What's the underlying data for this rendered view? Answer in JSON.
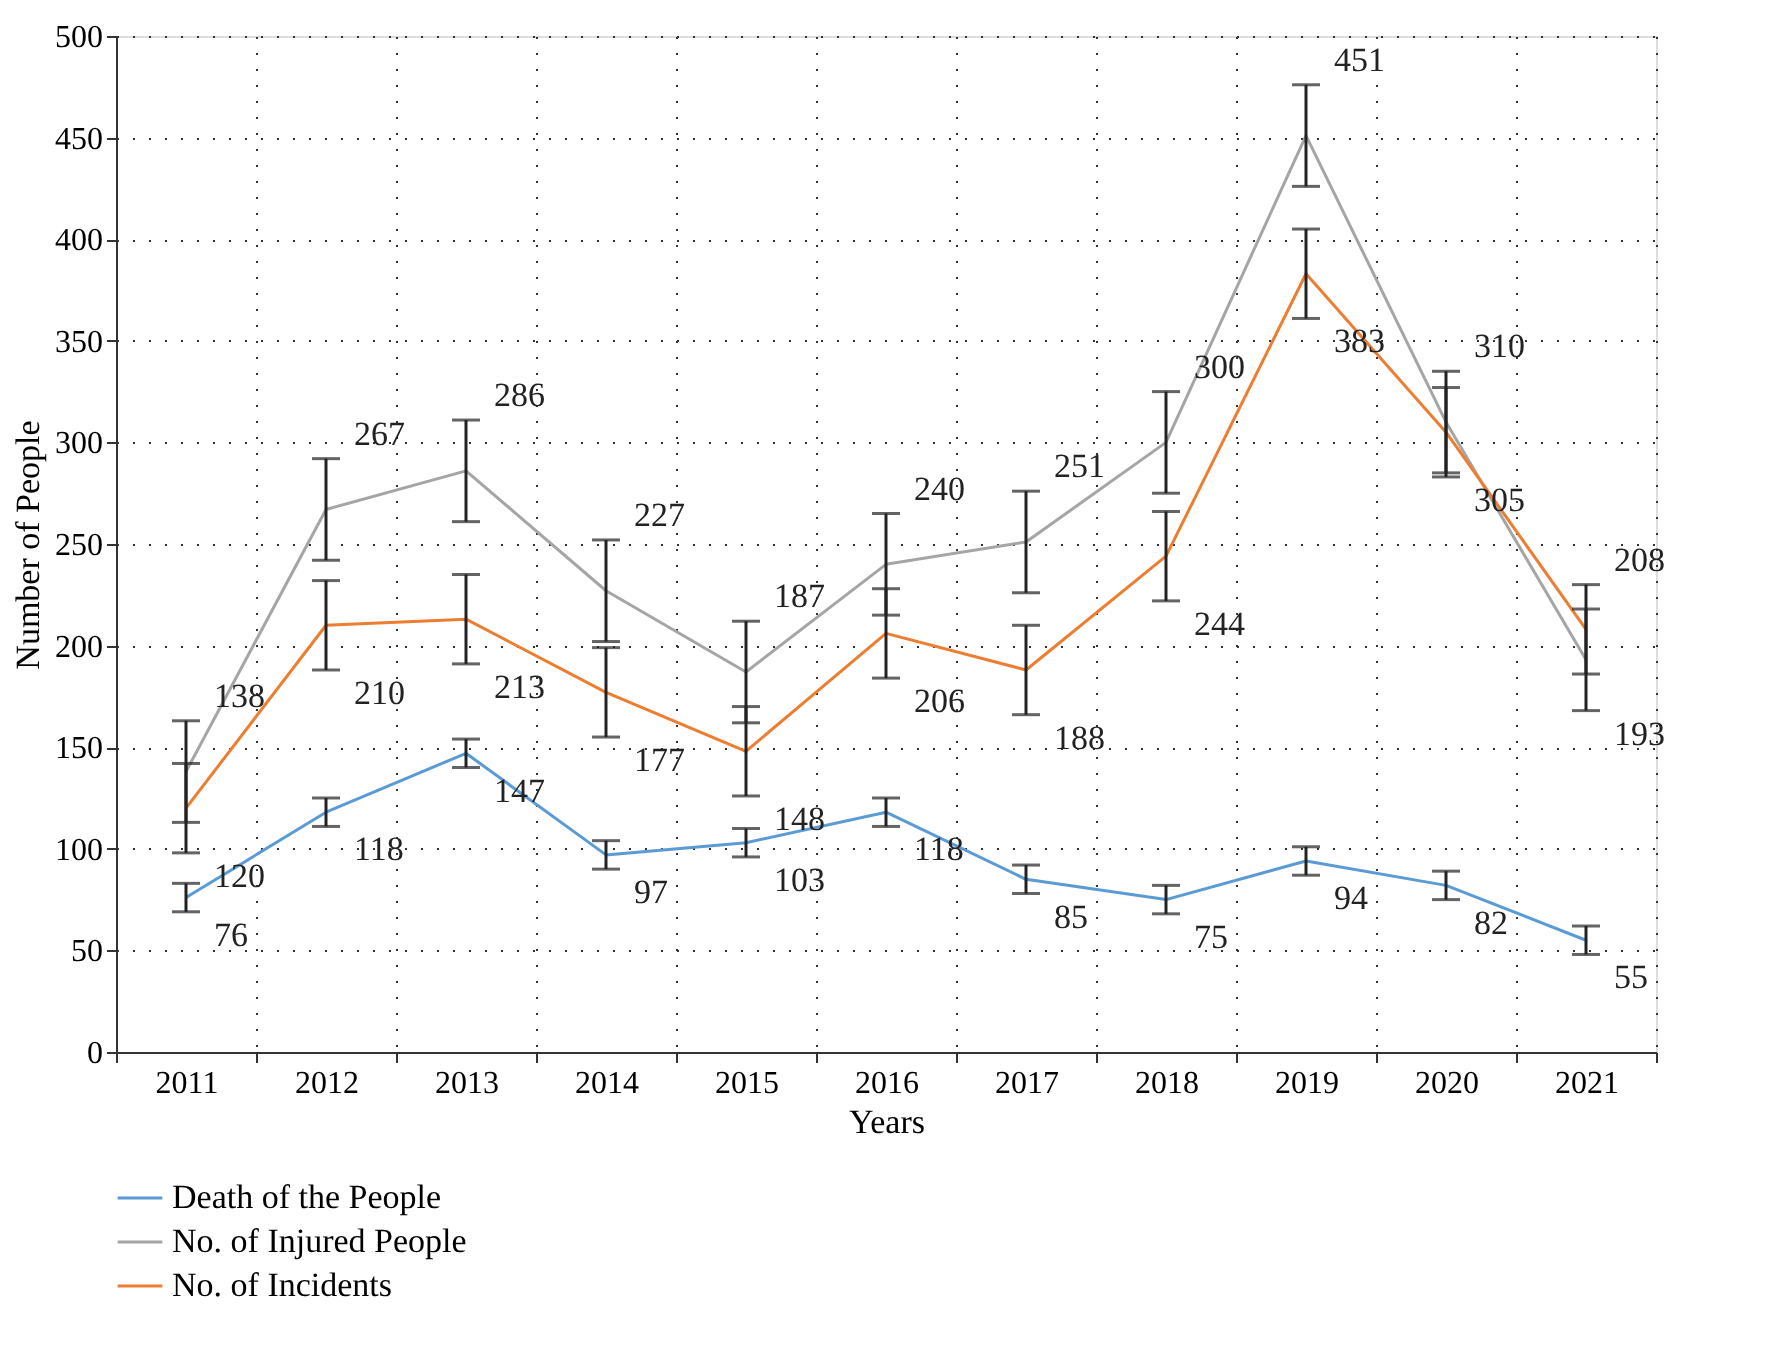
{
  "chart_data": {
    "type": "line",
    "xlabel": "Years",
    "ylabel": "Number of People",
    "categories": [
      "2011",
      "2012",
      "2013",
      "2014",
      "2015",
      "2016",
      "2017",
      "2018",
      "2019",
      "2020",
      "2021"
    ],
    "series": [
      {
        "name": "Death of the People",
        "color": "#5b9bd5",
        "values": [
          76,
          118,
          147,
          97,
          103,
          118,
          85,
          75,
          94,
          82,
          55
        ],
        "errors": [
          7,
          7,
          7,
          7,
          7,
          7,
          7,
          7,
          7,
          7,
          7
        ]
      },
      {
        "name": "No. of Injured People",
        "color": "#a5a5a5",
        "values": [
          138,
          267,
          286,
          227,
          187,
          240,
          251,
          300,
          451,
          310,
          193
        ],
        "errors": [
          25,
          25,
          25,
          25,
          25,
          25,
          25,
          25,
          25,
          25,
          25
        ]
      },
      {
        "name": "No. of Incidents",
        "color": "#ed7d31",
        "values": [
          120,
          210,
          213,
          177,
          148,
          206,
          188,
          244,
          383,
          305,
          208
        ],
        "errors": [
          22,
          22,
          22,
          22,
          22,
          22,
          22,
          22,
          22,
          22,
          22
        ]
      }
    ],
    "ylim": [
      0,
      500
    ],
    "yticks": [
      0,
      50,
      100,
      150,
      200,
      250,
      300,
      350,
      400,
      450,
      500
    ],
    "grid": true,
    "legend": "bottom left",
    "data_labels": true,
    "marker": "none",
    "line_style": "solid"
  }
}
